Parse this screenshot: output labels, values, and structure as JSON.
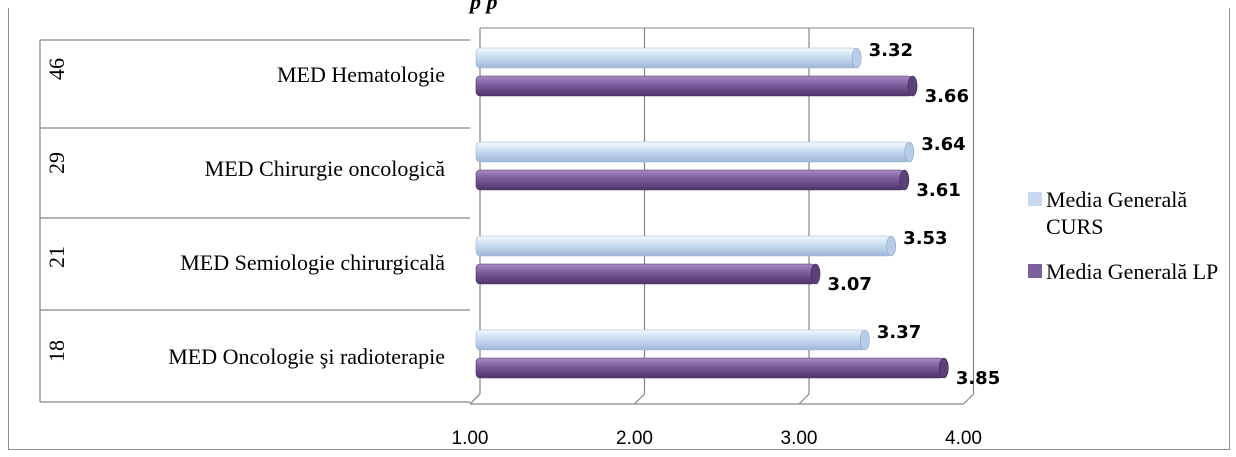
{
  "chart_data": {
    "type": "bar",
    "orientation": "horizontal",
    "title_fragment": "p      p",
    "categories": [
      {
        "id": "46",
        "label": "MED Hematologie"
      },
      {
        "id": "29",
        "label": "MED Chirurgie oncologică"
      },
      {
        "id": "21",
        "label": "MED Semiologie chirurgicală"
      },
      {
        "id": "18",
        "label": "MED Oncologie şi radioterapie"
      }
    ],
    "series": [
      {
        "name": "Media Generală CURS",
        "color": "#c6d9f1",
        "values": [
          3.32,
          3.64,
          3.53,
          3.37
        ]
      },
      {
        "name": "Media Generală LP",
        "color": "#7d5f9c",
        "values": [
          3.66,
          3.61,
          3.07,
          3.85
        ]
      }
    ],
    "value_labels": {
      "Media Generală CURS": [
        "3.32",
        "3.64",
        "3.53",
        "3.37"
      ],
      "Media Generală LP": [
        "3.66",
        "3.61",
        "3.07",
        "3.85"
      ]
    },
    "xlim": [
      1,
      4
    ],
    "x_ticks": [
      "1.00",
      "2.00",
      "3.00",
      "4.00"
    ],
    "grid": true,
    "legend_position": "right"
  }
}
